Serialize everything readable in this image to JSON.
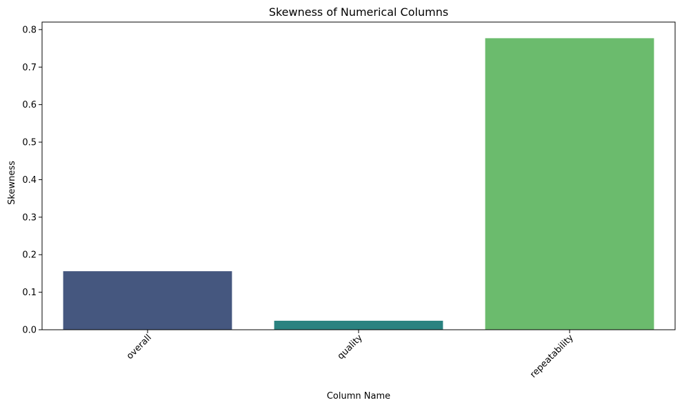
{
  "chart_data": {
    "type": "bar",
    "title": "Skewness of Numerical Columns",
    "xlabel": "Column Name",
    "ylabel": "Skewness",
    "categories": [
      "overall",
      "quality",
      "repeatability"
    ],
    "values": [
      0.156,
      0.024,
      0.777
    ],
    "colors": [
      "#45577f",
      "#2a8280",
      "#6bbb6d"
    ],
    "ylim": [
      0,
      0.82
    ],
    "yticks": [
      0.0,
      0.1,
      0.2,
      0.3,
      0.4,
      0.5,
      0.6,
      0.7,
      0.8
    ],
    "ytick_labels": [
      "0.0",
      "0.1",
      "0.2",
      "0.3",
      "0.4",
      "0.5",
      "0.6",
      "0.7",
      "0.8"
    ],
    "xtick_rotation": 45,
    "grid": false,
    "legend": false
  }
}
